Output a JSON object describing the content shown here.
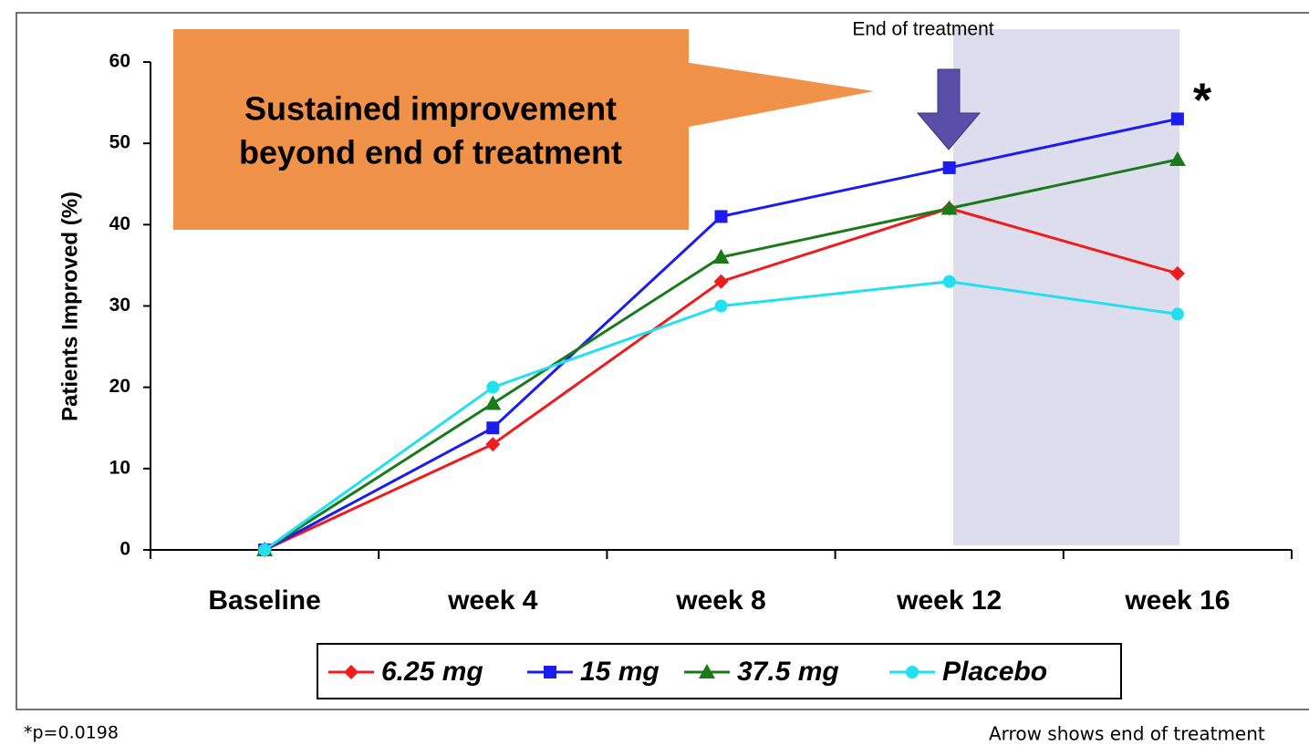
{
  "chart_data": {
    "type": "line",
    "y_label": "Patients Improved (%)",
    "categories": [
      "Baseline",
      "week 4",
      "week 8",
      "week 12",
      "week 16"
    ],
    "series": [
      {
        "name": "6.25 mg",
        "color": "#ee1c1c",
        "marker": "diamond",
        "values": [
          0,
          13,
          33,
          42,
          34
        ]
      },
      {
        "name": "15 mg",
        "color": "#1c1cee",
        "marker": "square",
        "values": [
          0,
          15,
          41,
          47,
          53
        ]
      },
      {
        "name": "37.5 mg",
        "color": "#1a7a1a",
        "marker": "triangle",
        "values": [
          0,
          18,
          36,
          42,
          48
        ]
      },
      {
        "name": "Placebo",
        "color": "#22e0f0",
        "marker": "circle",
        "values": [
          0,
          20,
          30,
          33,
          29
        ]
      }
    ],
    "ylim": [
      0,
      60
    ],
    "yticks": [
      0,
      10,
      20,
      30,
      40,
      50,
      60
    ],
    "callout": [
      "Sustained improvement",
      "beyond end of treatment"
    ],
    "end_label": "End of treatment",
    "significance_mark": "*",
    "footnote": "*p=0.0198",
    "note": "Arrow shows end of treatment"
  }
}
